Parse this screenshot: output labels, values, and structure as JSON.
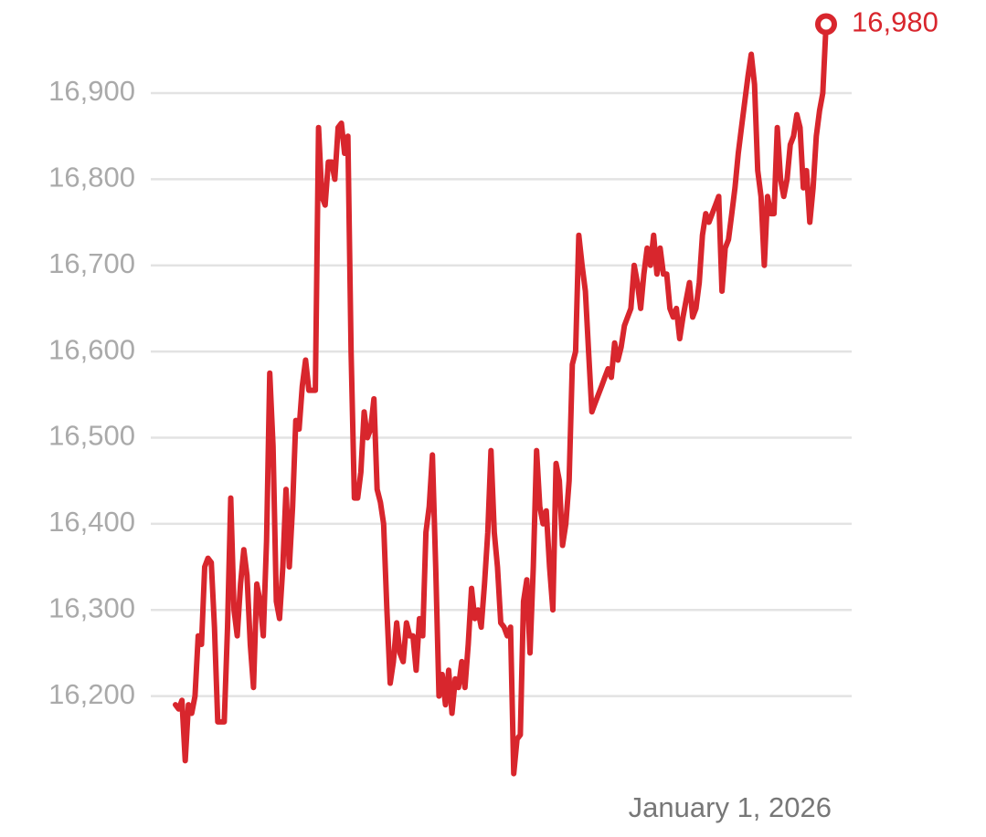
{
  "chart_data": {
    "type": "line",
    "color": "#d8262d",
    "ylim": [
      16100,
      17000
    ],
    "yticks": [
      {
        "value": 16200,
        "label": "16,200"
      },
      {
        "value": 16300,
        "label": "16,300"
      },
      {
        "value": 16400,
        "label": "16,400"
      },
      {
        "value": 16500,
        "label": "16,500"
      },
      {
        "value": 16600,
        "label": "16,600"
      },
      {
        "value": 16700,
        "label": "16,700"
      },
      {
        "value": 16800,
        "label": "16,800"
      },
      {
        "value": 16900,
        "label": "16,900"
      }
    ],
    "grid": true,
    "date_label": "January 1, 2026",
    "end_label": "16,980",
    "values": [
      16190,
      16185,
      16195,
      16125,
      16190,
      16180,
      16200,
      16270,
      16260,
      16350,
      16360,
      16355,
      16280,
      16170,
      16170,
      16170,
      16280,
      16430,
      16300,
      16270,
      16330,
      16370,
      16340,
      16260,
      16210,
      16330,
      16310,
      16270,
      16380,
      16575,
      16490,
      16310,
      16290,
      16350,
      16440,
      16350,
      16420,
      16520,
      16510,
      16560,
      16590,
      16555,
      16555,
      16555,
      16860,
      16780,
      16770,
      16820,
      16820,
      16800,
      16860,
      16865,
      16830,
      16850,
      16600,
      16430,
      16430,
      16460,
      16530,
      16500,
      16510,
      16545,
      16440,
      16425,
      16400,
      16300,
      16215,
      16240,
      16285,
      16250,
      16240,
      16285,
      16270,
      16270,
      16230,
      16290,
      16270,
      16390,
      16420,
      16480,
      16350,
      16200,
      16225,
      16190,
      16230,
      16180,
      16220,
      16210,
      16240,
      16210,
      16260,
      16325,
      16290,
      16300,
      16280,
      16330,
      16390,
      16485,
      16390,
      16350,
      16285,
      16280,
      16270,
      16280,
      16110,
      16150,
      16155,
      16310,
      16335,
      16250,
      16350,
      16485,
      16420,
      16400,
      16415,
      16350,
      16300,
      16470,
      16450,
      16375,
      16400,
      16450,
      16585,
      16600,
      16735,
      16700,
      16670,
      16600,
      16530,
      16540,
      16550,
      16560,
      16570,
      16580,
      16570,
      16610,
      16590,
      16605,
      16630,
      16640,
      16650,
      16700,
      16680,
      16650,
      16690,
      16720,
      16700,
      16735,
      16690,
      16720,
      16690,
      16690,
      16650,
      16640,
      16650,
      16615,
      16640,
      16660,
      16680,
      16640,
      16650,
      16680,
      16735,
      16760,
      16750,
      16760,
      16770,
      16780,
      16670,
      16720,
      16730,
      16760,
      16790,
      16830,
      16860,
      16890,
      16920,
      16945,
      16910,
      16810,
      16780,
      16700,
      16780,
      16760,
      16760,
      16860,
      16800,
      16780,
      16800,
      16840,
      16850,
      16875,
      16860,
      16790,
      16810,
      16750,
      16790,
      16850,
      16880,
      16900,
      16980
    ]
  }
}
